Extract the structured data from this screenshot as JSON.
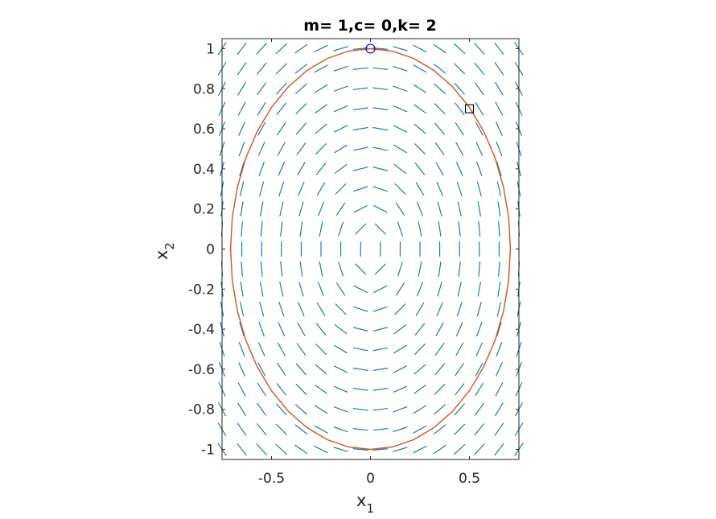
{
  "chart_data": {
    "type": "quiver-phase-portrait",
    "title": "m= 1,c= 0,k= 2",
    "xlabel": {
      "main": "x",
      "subscript": "1"
    },
    "ylabel": {
      "main": "x",
      "subscript": "2"
    },
    "xlim": [
      -0.75,
      0.75
    ],
    "ylim": [
      -1.05,
      1.05
    ],
    "xticks": [
      -0.5,
      0,
      0.5
    ],
    "xtick_labels": [
      "-0.5",
      "0",
      "0.5"
    ],
    "yticks": [
      -1,
      -0.8,
      -0.6,
      -0.4,
      -0.2,
      0,
      0.2,
      0.4,
      0.6,
      0.8,
      1
    ],
    "ytick_labels": [
      "-1",
      "-0.8",
      "-0.6",
      "-0.4",
      "-0.2",
      "0",
      "0.2",
      "0.4",
      "0.6",
      "0.8",
      "1"
    ],
    "grid": false,
    "parameters": {
      "m": 1,
      "c": 0,
      "k": 2
    },
    "field": {
      "x1_range": [
        -0.75,
        0.75
      ],
      "x2_range": [
        -1,
        1
      ],
      "nx": 16,
      "ny": 21
    },
    "trajectory": {
      "type": "ellipse",
      "x1_amplitude": 0.7071,
      "x2_amplitude": 1.0,
      "points": 40
    },
    "start_marker": {
      "shape": "circle",
      "x1": 0,
      "x2": 1
    },
    "end_marker": {
      "shape": "square",
      "x1": 0.5,
      "x2": 0.7
    },
    "colors": {
      "field": "#0072BD",
      "trajectory": "#D95319",
      "start_marker": "#0000FF",
      "end_marker": "#000000",
      "axes": "#262626"
    }
  }
}
